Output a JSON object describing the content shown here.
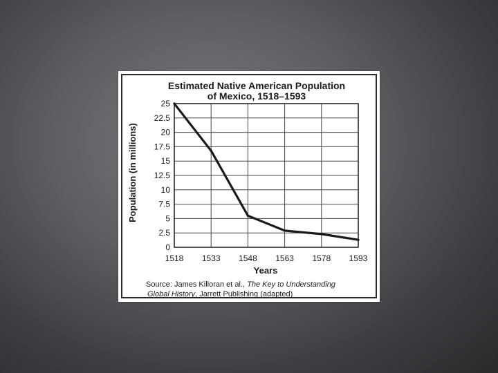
{
  "chart_data": {
    "type": "line",
    "title_lines": [
      "Estimated Native American Population",
      "of Mexico, 1518–1593"
    ],
    "xlabel": "Years",
    "ylabel": "Population (in millions)",
    "x": [
      1518,
      1533,
      1548,
      1563,
      1578,
      1593
    ],
    "x_tick_labels": [
      "1518",
      "1533",
      "1548",
      "1563",
      "1578",
      "1593"
    ],
    "y_tick_values": [
      0,
      2.5,
      5,
      7.5,
      10,
      12.5,
      15,
      17.5,
      20,
      22.5,
      25
    ],
    "y_tick_labels": [
      "0",
      "2.5",
      "5",
      "7.5",
      "10",
      "12.5",
      "15",
      "17.5",
      "20",
      "22.5",
      "25"
    ],
    "series": [
      {
        "values": [
          25,
          16.8,
          5.5,
          2.9,
          2.3,
          1.3
        ]
      }
    ],
    "xlim": [
      1518,
      1593
    ],
    "ylim": [
      0,
      25
    ],
    "grid": true,
    "line_color": "#1a1a1a"
  },
  "source": {
    "prefix": "Source: James Killoran et al., ",
    "title_part1": "The Key to Understanding",
    "title_part2": "Global History",
    "suffix": ", Jarrett Publishing (adapted)"
  }
}
